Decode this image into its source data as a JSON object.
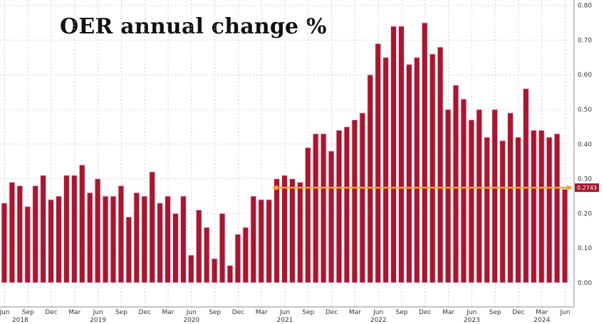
{
  "chart_data": {
    "type": "bar",
    "title": "OER annual change %",
    "ylim": [
      -0.09,
      0.81
    ],
    "yticks": [
      "0.00",
      "0.10",
      "0.20",
      "0.30",
      "0.40",
      "0.50",
      "0.60",
      "0.70",
      "0.80"
    ],
    "ytick_values": [
      0,
      0.1,
      0.2,
      0.3,
      0.4,
      0.5,
      0.6,
      0.7,
      0.8
    ],
    "grid": true,
    "bar_color": "#a3192e",
    "bar_outline": "#ffc9e6",
    "reference_line": {
      "value": 0.2743,
      "label": "0.2743",
      "color": "#f5a623"
    },
    "last_label_color": "#a3192e",
    "x_month_labels": [
      {
        "label": "Jun",
        "index": 0
      },
      {
        "label": "Sep",
        "index": 3
      },
      {
        "label": "Dec",
        "index": 6
      },
      {
        "label": "Mar",
        "index": 9
      },
      {
        "label": "Jun",
        "index": 12
      },
      {
        "label": "Sep",
        "index": 15
      },
      {
        "label": "Dec",
        "index": 18
      },
      {
        "label": "Mar",
        "index": 21
      },
      {
        "label": "Jun",
        "index": 24
      },
      {
        "label": "Sep",
        "index": 27
      },
      {
        "label": "Dec",
        "index": 30
      },
      {
        "label": "Mar",
        "index": 33
      },
      {
        "label": "Jun",
        "index": 36
      },
      {
        "label": "Sep",
        "index": 39
      },
      {
        "label": "Dec",
        "index": 42
      },
      {
        "label": "Mar",
        "index": 45
      },
      {
        "label": "Jun",
        "index": 48
      },
      {
        "label": "Sep",
        "index": 51
      },
      {
        "label": "Dec",
        "index": 54
      },
      {
        "label": "Mar",
        "index": 57
      },
      {
        "label": "Jun",
        "index": 60
      },
      {
        "label": "Sep",
        "index": 63
      },
      {
        "label": "Dec",
        "index": 66
      },
      {
        "label": "Mar",
        "index": 69
      },
      {
        "label": "Jun",
        "index": 72
      }
    ],
    "x_year_labels": [
      {
        "label": "2018",
        "index": 2
      },
      {
        "label": "2019",
        "index": 12
      },
      {
        "label": "2020",
        "index": 24
      },
      {
        "label": "2021",
        "index": 36
      },
      {
        "label": "2022",
        "index": 48
      },
      {
        "label": "2023",
        "index": 60
      },
      {
        "label": "2024",
        "index": 69
      }
    ],
    "values": [
      0.23,
      0.29,
      0.28,
      0.22,
      0.28,
      0.31,
      0.24,
      0.25,
      0.31,
      0.31,
      0.34,
      0.26,
      0.3,
      0.25,
      0.25,
      0.28,
      0.19,
      0.26,
      0.25,
      0.32,
      0.23,
      0.25,
      0.2,
      0.25,
      0.08,
      0.21,
      0.16,
      0.07,
      0.2,
      0.05,
      0.14,
      0.16,
      0.25,
      0.24,
      0.24,
      0.3,
      0.31,
      0.3,
      0.29,
      0.39,
      0.43,
      0.43,
      0.38,
      0.44,
      0.45,
      0.47,
      0.49,
      0.6,
      0.69,
      0.65,
      0.74,
      0.74,
      0.63,
      0.65,
      0.75,
      0.66,
      0.68,
      0.5,
      0.57,
      0.53,
      0.47,
      0.5,
      0.42,
      0.5,
      0.41,
      0.49,
      0.42,
      0.56,
      0.44,
      0.44,
      0.42,
      0.43,
      0.27
    ]
  }
}
